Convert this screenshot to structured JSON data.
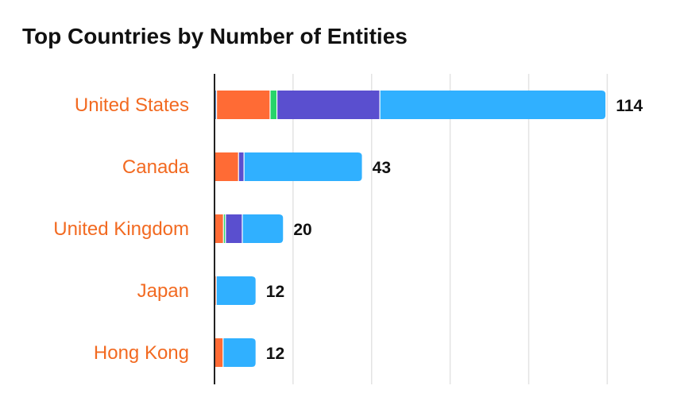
{
  "chart_data": {
    "type": "bar",
    "orientation": "horizontal",
    "stacked": true,
    "title": "Top Countries by Number of Entities",
    "categories": [
      "United States",
      "Canada",
      "United Kingdom",
      "Japan",
      "Hong Kong"
    ],
    "totals": [
      "114",
      "43",
      "20",
      "12",
      "12"
    ],
    "series": [
      {
        "color": "#5b88c9",
        "values": [
          0.6,
          0,
          0,
          0,
          0
        ]
      },
      {
        "color": "#ff6b35",
        "values": [
          15.6,
          7,
          2.6,
          0.5,
          2.5
        ]
      },
      {
        "color": "#27d46a",
        "values": [
          2,
          0,
          0.6,
          0,
          0
        ]
      },
      {
        "color": "#5a4fcf",
        "values": [
          30,
          1.6,
          4.9,
          0,
          0
        ]
      },
      {
        "color": "#30b0ff",
        "values": [
          65.8,
          34.4,
          11.9,
          11.5,
          9.5
        ]
      }
    ],
    "xlim": [
      0,
      126
    ],
    "grid": true,
    "legend": false,
    "colors": {
      "category_label": "#f26a21",
      "value_label": "#111111",
      "grid": "#e3e3e3",
      "axis": "#222222"
    }
  }
}
